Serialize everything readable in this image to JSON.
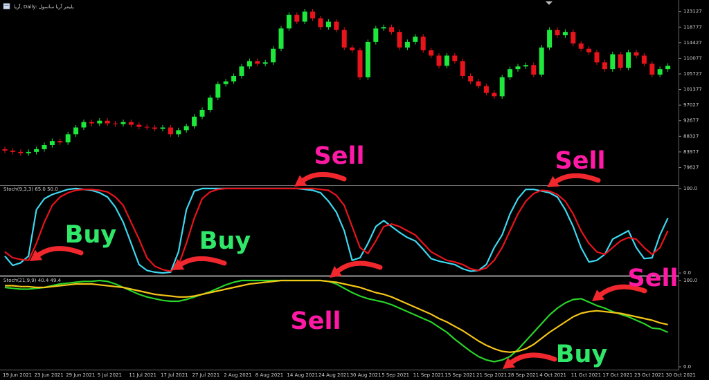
{
  "header": {
    "title": "آریا, Daily: پلیمر آریا ساسول"
  },
  "chart_data": [
    {
      "type": "candlestick",
      "categories": [
        "19 Jun 2021",
        null,
        null,
        null,
        "23 Jun 2021",
        null,
        null,
        null,
        "29 Jun 2021",
        null,
        null,
        null,
        "5 Jul 2021",
        null,
        null,
        null,
        "11 Jul 2021",
        null,
        null,
        null,
        "17 Jul 2021",
        null,
        null,
        null,
        "27 Jul 2021",
        null,
        null,
        null,
        "2 Aug 2021",
        null,
        null,
        null,
        "8 Aug 2021",
        null,
        null,
        null,
        "14 Aug 2021",
        null,
        null,
        null,
        "24 Aug 2021",
        null,
        null,
        null,
        "30 Aug 2021",
        null,
        null,
        null,
        "5 Sep 2021",
        null,
        null,
        null,
        "11 Sep 2021",
        null,
        null,
        null,
        "15 Sep 2021",
        null,
        null,
        null,
        "21 Sep 2021",
        null,
        null,
        null,
        "28 Sep 2021",
        null,
        null,
        null,
        "4 Oct 2021",
        null,
        null,
        null,
        "11 Oct 2021",
        null,
        null,
        null,
        "17 Oct 2021",
        null,
        null,
        null,
        "23 Oct 2021",
        null,
        null,
        null,
        "30 Oct 2021"
      ],
      "open": [
        84740,
        84360,
        83980,
        83610,
        83980,
        84740,
        85880,
        87010,
        86630,
        88900,
        90790,
        92300,
        91930,
        92680,
        91930,
        91740,
        92300,
        91550,
        90980,
        90790,
        90410,
        90790,
        88900,
        90040,
        91170,
        93820,
        95710,
        99110,
        102890,
        103650,
        105160,
        107810,
        109320,
        108570,
        108950,
        112730,
        118400,
        122180,
        120290,
        123130,
        121240,
        118780,
        120290,
        118020,
        113100,
        112350,
        104790,
        114620,
        118400,
        118780,
        117450,
        113100,
        114620,
        116130,
        112350,
        110840,
        108000,
        110840,
        109320,
        105160,
        103650,
        102330,
        100440,
        99490,
        104790,
        107050,
        107810,
        108190,
        105540,
        113100,
        118020,
        116510,
        117450,
        114240,
        112730,
        111780,
        108950,
        107050,
        111210,
        107430,
        111780,
        110840,
        108570,
        105540,
        107050
      ],
      "high": [
        85440,
        85060,
        84680,
        84680,
        85440,
        86580,
        87710,
        87710,
        89600,
        91490,
        93000,
        93000,
        93380,
        93380,
        92630,
        93000,
        93000,
        92250,
        91680,
        91490,
        91490,
        91490,
        90740,
        91870,
        94520,
        96410,
        99810,
        103590,
        104350,
        105860,
        108510,
        110020,
        110020,
        109650,
        113430,
        119100,
        122880,
        122880,
        123830,
        123830,
        121940,
        120990,
        120990,
        118720,
        113800,
        113050,
        115320,
        119100,
        119480,
        119480,
        118150,
        115320,
        116830,
        116830,
        113050,
        111540,
        111540,
        111540,
        110020,
        105860,
        104350,
        103030,
        101140,
        105490,
        107750,
        108510,
        108890,
        108890,
        113800,
        118720,
        118720,
        118150,
        118150,
        114940,
        113430,
        112480,
        109650,
        111910,
        111910,
        112480,
        112480,
        111540,
        109270,
        107750,
        108700
      ],
      "low": [
        83660,
        83280,
        82910,
        82910,
        83280,
        84040,
        85180,
        85930,
        85930,
        88200,
        90090,
        91230,
        91230,
        91230,
        91040,
        91040,
        90850,
        90280,
        90090,
        89710,
        89710,
        88200,
        88200,
        89340,
        90470,
        93120,
        95010,
        98410,
        102190,
        102950,
        104460,
        107110,
        107870,
        107870,
        108250,
        112030,
        117700,
        119590,
        119590,
        120540,
        118080,
        118080,
        117320,
        112400,
        111650,
        104090,
        104090,
        113920,
        117700,
        116750,
        112400,
        112400,
        113920,
        111650,
        110140,
        107300,
        107300,
        108620,
        104460,
        102950,
        101630,
        99740,
        98790,
        98790,
        104090,
        106350,
        107110,
        104840,
        104840,
        112400,
        115810,
        115810,
        113540,
        112030,
        111080,
        108250,
        106350,
        106350,
        106730,
        106730,
        110140,
        107870,
        104840,
        104840,
        106350
      ],
      "close": [
        84360,
        83980,
        83610,
        83980,
        84740,
        85880,
        87010,
        86630,
        88900,
        90790,
        92300,
        91930,
        92680,
        91930,
        91740,
        92300,
        91550,
        90980,
        90790,
        90410,
        90790,
        88900,
        90040,
        91170,
        93820,
        95710,
        99110,
        102890,
        103650,
        105160,
        107810,
        109320,
        108570,
        108950,
        112730,
        118400,
        122180,
        120290,
        123130,
        121240,
        118780,
        120290,
        118020,
        113100,
        112350,
        104790,
        114620,
        118400,
        118780,
        117450,
        113100,
        114620,
        116130,
        112350,
        110840,
        108000,
        110840,
        109320,
        105160,
        103650,
        102330,
        100440,
        99490,
        104790,
        107050,
        107810,
        108190,
        105540,
        113100,
        118020,
        116510,
        117450,
        114240,
        112730,
        111780,
        108950,
        107050,
        111210,
        107430,
        111780,
        110840,
        108570,
        105540,
        107050,
        108000
      ],
      "up_color": "#1fe83c",
      "down_color": "#e8141c",
      "ylim": [
        75090,
        125960
      ],
      "yticks": [
        79627,
        83977,
        88327,
        92677,
        97027,
        101377,
        105727,
        110077,
        114427,
        118777,
        123127
      ]
    },
    {
      "type": "line",
      "title": "Stoch(9,3,3) 65.0 50.0",
      "series": [
        {
          "color": "#3ed8f0",
          "values": [
            20,
            9,
            12,
            20,
            75,
            88,
            93,
            96,
            99,
            100,
            99,
            98,
            95,
            90,
            78,
            60,
            35,
            10,
            3,
            1,
            0,
            1,
            25,
            75,
            97,
            100,
            100,
            100,
            100,
            100,
            100,
            100,
            100,
            100,
            100,
            100,
            100,
            100,
            99,
            98,
            95,
            85,
            72,
            50,
            15,
            18,
            35,
            55,
            62,
            55,
            48,
            42,
            38,
            28,
            17,
            14,
            12,
            10,
            5,
            2,
            3,
            10,
            30,
            45,
            70,
            88,
            99,
            99,
            97,
            95,
            90,
            75,
            55,
            30,
            13,
            15,
            22,
            40,
            45,
            50,
            30,
            17,
            18,
            45,
            65
          ]
        },
        {
          "color": "#e8141c",
          "values": [
            25,
            18,
            16,
            15,
            35,
            60,
            80,
            90,
            95,
            98,
            99,
            99,
            98,
            96,
            90,
            80,
            60,
            40,
            18,
            8,
            4,
            2,
            9,
            35,
            65,
            88,
            96,
            99,
            100,
            100,
            100,
            100,
            100,
            100,
            100,
            100,
            100,
            100,
            100,
            100,
            99,
            98,
            92,
            80,
            55,
            30,
            23,
            38,
            55,
            58,
            55,
            50,
            45,
            35,
            25,
            20,
            15,
            13,
            10,
            5,
            3,
            6,
            15,
            30,
            50,
            70,
            85,
            94,
            98,
            97,
            93,
            85,
            70,
            50,
            35,
            25,
            22,
            30,
            38,
            42,
            40,
            30,
            22,
            30,
            50
          ]
        }
      ],
      "ylim": [
        -3.2,
        103.2
      ],
      "yticks": [
        {
          "value": 100,
          "label": "100.0"
        },
        {
          "value": 0,
          "label": "0.0"
        }
      ]
    },
    {
      "type": "line",
      "title": "Stoch(21,9,9) 40.4 49.4",
      "series": [
        {
          "color": "#2ad42a",
          "values": [
            92,
            91,
            90,
            90,
            91,
            92,
            94,
            96,
            97,
            98,
            99,
            99,
            100,
            99,
            96,
            92,
            88,
            84,
            81,
            79,
            77,
            76,
            76,
            78,
            81,
            84,
            87,
            91,
            95,
            98,
            100,
            100,
            100,
            100,
            100,
            100,
            100,
            100,
            100,
            100,
            100,
            99,
            96,
            91,
            86,
            82,
            79,
            77,
            75,
            72,
            68,
            64,
            60,
            56,
            52,
            46,
            40,
            32,
            25,
            18,
            12,
            8,
            6,
            8,
            12,
            20,
            30,
            40,
            50,
            60,
            68,
            74,
            78,
            79,
            75,
            71,
            68,
            64,
            61,
            58,
            54,
            50,
            45,
            44,
            40
          ]
        },
        {
          "color": "#f5c518",
          "values": [
            94,
            94,
            93,
            93,
            92,
            92,
            93,
            94,
            95,
            96,
            96,
            96,
            95,
            94,
            93,
            92,
            90,
            88,
            86,
            84,
            83,
            82,
            81,
            81,
            82,
            84,
            86,
            88,
            90,
            92,
            94,
            96,
            97,
            98,
            99,
            100,
            100,
            100,
            100,
            100,
            100,
            99,
            98,
            96,
            94,
            92,
            89,
            86,
            84,
            81,
            77,
            73,
            69,
            65,
            61,
            56,
            52,
            47,
            42,
            36,
            30,
            25,
            21,
            18,
            17,
            18,
            21,
            26,
            33,
            40,
            46,
            52,
            58,
            62,
            64,
            65,
            64,
            63,
            62,
            60,
            58,
            56,
            54,
            51,
            49
          ]
        }
      ],
      "ylim": [
        -3.2,
        104
      ],
      "yticks": [
        {
          "value": 100,
          "label": "100.0"
        },
        {
          "value": 0,
          "label": "0.0"
        }
      ]
    }
  ],
  "annotations": [
    {
      "text": "Sell",
      "color": "#ff1aa6"
    },
    {
      "text": "Sell",
      "color": "#ff1aa6"
    },
    {
      "text": "Buy",
      "color": "#2fe86a"
    },
    {
      "text": "Buy",
      "color": "#2fe86a"
    },
    {
      "text": "Sell",
      "color": "#ff1aa6"
    },
    {
      "text": "Sell",
      "color": "#ff1aa6"
    },
    {
      "text": "Buy",
      "color": "#2fe86a"
    }
  ]
}
